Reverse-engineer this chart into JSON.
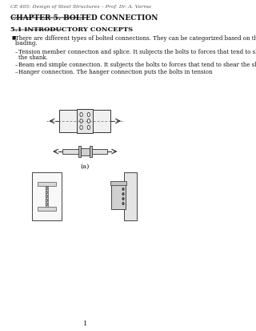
{
  "background_color": "#ffffff",
  "header_text": "CE 405: Design of Steel Structures – Prof. Dr. A. Varma",
  "chapter_title": "CHAPTER 5. BOLTED CONNECTION",
  "section_title": "5.1 INTRODUCTORY CONCEPTS",
  "bullet_lines": [
    "There are different types of bolted connections. They can be categorized based on the type of",
    "loading."
  ],
  "dash_items": [
    [
      "Tension member connection and splice. It subjects the bolts to forces that tend to shear",
      "the shank."
    ],
    [
      "Beam end simple connection. It subjects the bolts to forces that tend to shear the shank."
    ],
    [
      "Hanger connection. The hanger connection puts the bolts in tension"
    ]
  ],
  "caption_a": "(a)",
  "page_number": "1",
  "text_color": "#111111",
  "header_color": "#555555",
  "bullet_symbol": "■",
  "dash_symbol": "–"
}
